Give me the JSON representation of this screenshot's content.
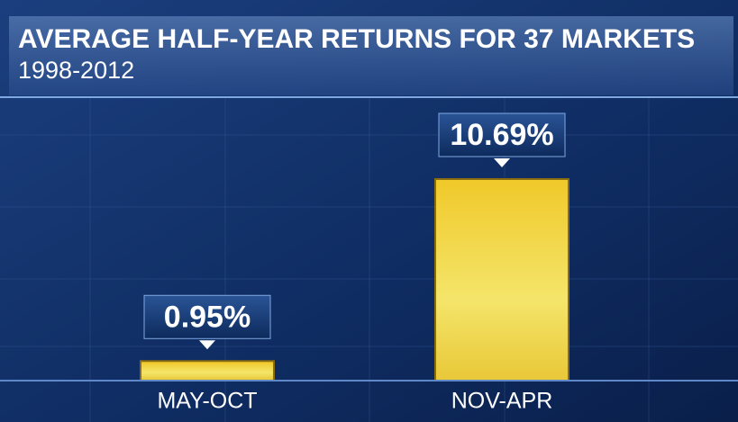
{
  "chart_data": {
    "type": "bar",
    "title": "AVERAGE HALF-YEAR RETURNS FOR 37 MARKETS",
    "subtitle": "1998-2012",
    "categories": [
      "MAY-OCT",
      "NOV-APR"
    ],
    "values": [
      0.95,
      10.69
    ],
    "value_labels": [
      "0.95%",
      "10.69%"
    ],
    "color": "#f2d43a"
  }
}
